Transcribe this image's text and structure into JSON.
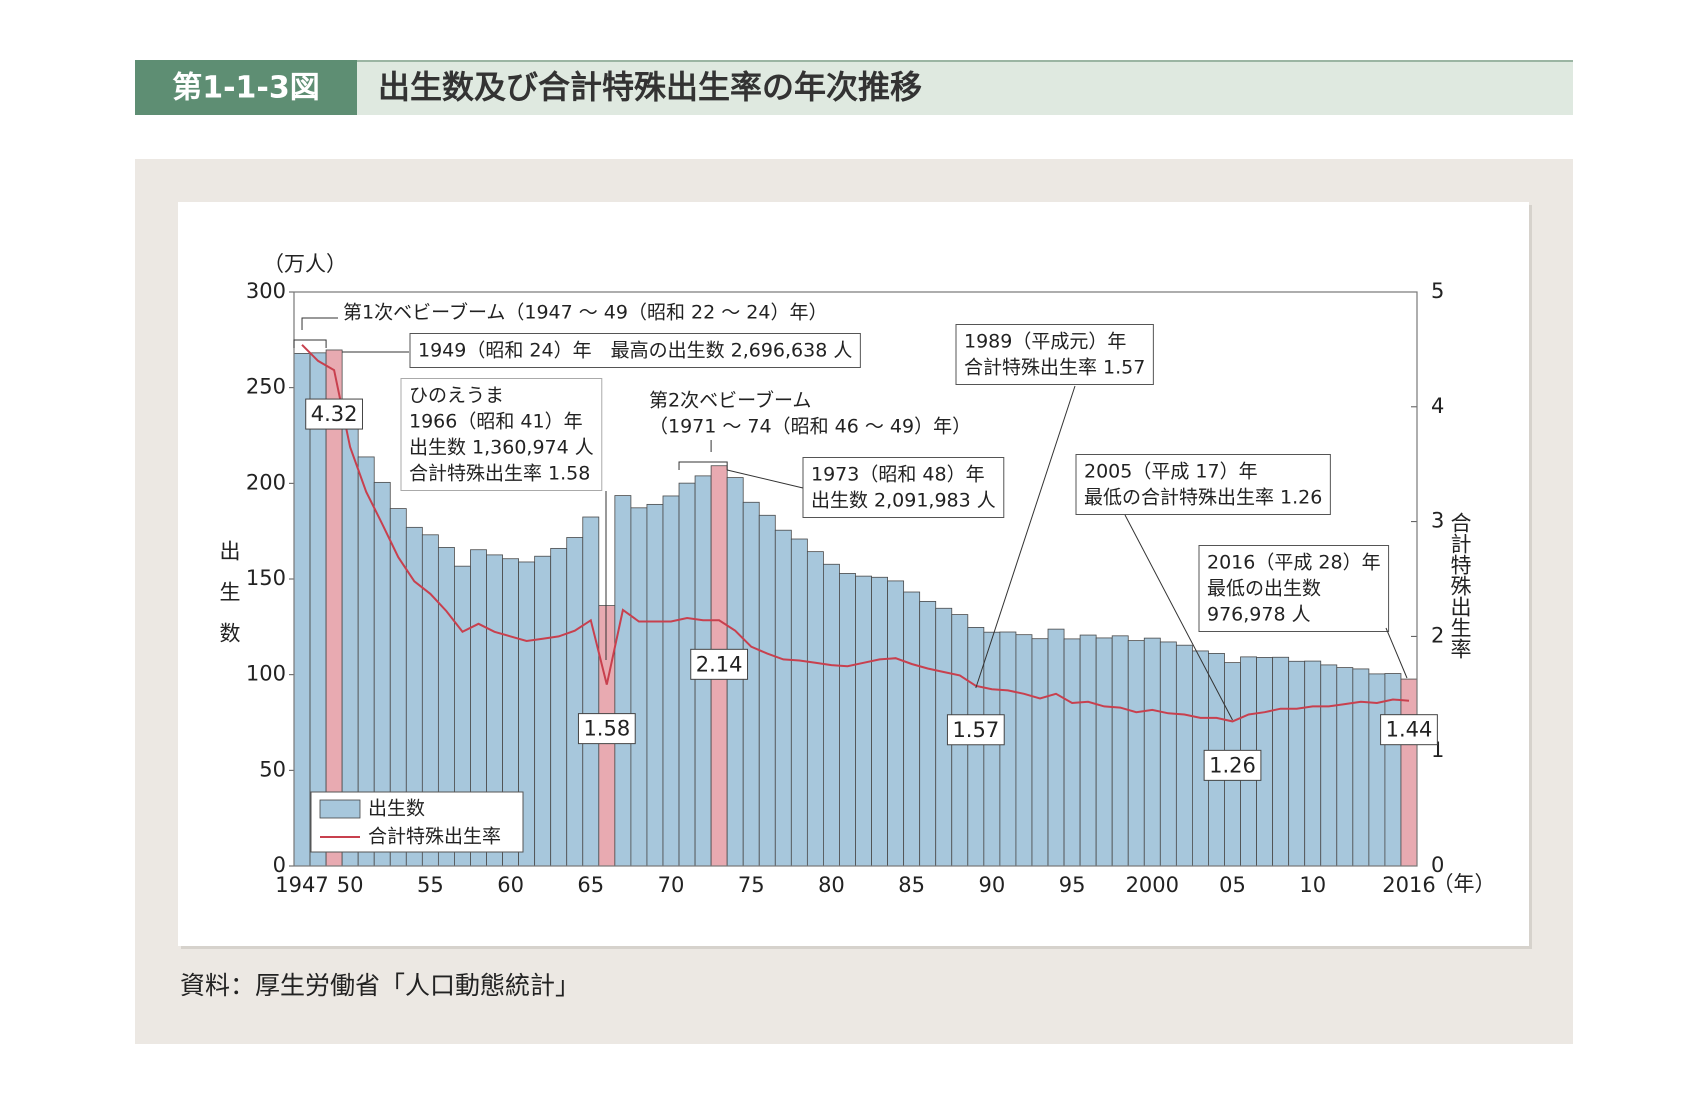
{
  "header": {
    "figure_number": "第1-1-3図",
    "title": "出生数及び合計特殊出生率の年次推移"
  },
  "source": "資料：厚生労働省「人口動態統計」",
  "chart_data": {
    "type": "bar_line",
    "y_unit": "（万人）",
    "y_label": "出生数",
    "y2_label": "合計特殊出生率",
    "x_unit": "（年）",
    "categories": [
      "1947",
      null,
      null,
      "50",
      null,
      null,
      null,
      null,
      "55",
      null,
      null,
      null,
      null,
      "60",
      null,
      null,
      null,
      null,
      "65",
      null,
      null,
      null,
      null,
      "70",
      null,
      null,
      null,
      null,
      "75",
      null,
      null,
      null,
      null,
      "80",
      null,
      null,
      null,
      null,
      "85",
      null,
      null,
      null,
      null,
      "90",
      null,
      null,
      null,
      null,
      "95",
      null,
      null,
      null,
      null,
      "2000",
      null,
      null,
      null,
      null,
      "05",
      null,
      null,
      null,
      null,
      "10",
      null,
      null,
      null,
      null,
      null,
      "2016"
    ],
    "series": [
      {
        "name": "出生数",
        "type": "bar",
        "color": "#a7c7dc",
        "highlight_color": "#e8aab1",
        "colors": [
          "#a7c7dc",
          "#a7c7dc",
          "#e8aab1",
          "#a7c7dc",
          "#a7c7dc",
          "#a7c7dc",
          "#a7c7dc",
          "#a7c7dc",
          "#a7c7dc",
          "#a7c7dc",
          "#a7c7dc",
          "#a7c7dc",
          "#a7c7dc",
          "#a7c7dc",
          "#a7c7dc",
          "#a7c7dc",
          "#a7c7dc",
          "#a7c7dc",
          "#a7c7dc",
          "#e8aab1",
          "#a7c7dc",
          "#a7c7dc",
          "#a7c7dc",
          "#a7c7dc",
          "#a7c7dc",
          "#a7c7dc",
          "#e8aab1",
          "#a7c7dc",
          "#a7c7dc",
          "#a7c7dc",
          "#a7c7dc",
          "#a7c7dc",
          "#a7c7dc",
          "#a7c7dc",
          "#a7c7dc",
          "#a7c7dc",
          "#a7c7dc",
          "#a7c7dc",
          "#a7c7dc",
          "#a7c7dc",
          "#a7c7dc",
          "#a7c7dc",
          "#a7c7dc",
          "#a7c7dc",
          "#a7c7dc",
          "#a7c7dc",
          "#a7c7dc",
          "#a7c7dc",
          "#a7c7dc",
          "#a7c7dc",
          "#a7c7dc",
          "#a7c7dc",
          "#a7c7dc",
          "#a7c7dc",
          "#a7c7dc",
          "#a7c7dc",
          "#a7c7dc",
          "#a7c7dc",
          "#a7c7dc",
          "#a7c7dc",
          "#a7c7dc",
          "#a7c7dc",
          "#a7c7dc",
          "#a7c7dc",
          "#a7c7dc",
          "#a7c7dc",
          "#a7c7dc",
          "#a7c7dc",
          "#a7c7dc",
          "#e8aab1"
        ],
        "values": [
          267.9,
          268.2,
          269.7,
          233.8,
          213.8,
          200.5,
          186.8,
          177.0,
          173.1,
          166.5,
          156.7,
          165.3,
          162.6,
          160.6,
          158.9,
          161.9,
          166.0,
          171.7,
          182.4,
          136.1,
          193.6,
          187.2,
          189.0,
          193.4,
          200.1,
          203.9,
          209.2,
          203.0,
          190.1,
          183.3,
          175.5,
          170.9,
          164.3,
          157.7,
          152.9,
          151.5,
          150.9,
          149.0,
          143.2,
          138.3,
          134.7,
          131.4,
          124.7,
          122.2,
          122.3,
          120.9,
          118.8,
          123.8,
          118.7,
          120.7,
          119.2,
          120.3,
          117.8,
          119.1,
          117.1,
          115.4,
          112.4,
          111.1,
          106.3,
          109.3,
          109.0,
          109.1,
          107.0,
          107.1,
          105.1,
          103.7,
          103.0,
          100.4,
          100.6,
          97.7
        ]
      },
      {
        "name": "合計特殊出生率",
        "type": "line",
        "axis": "y2",
        "color": "#c8404e",
        "values": [
          4.54,
          4.4,
          4.32,
          3.65,
          3.26,
          2.98,
          2.69,
          2.48,
          2.37,
          2.22,
          2.04,
          2.11,
          2.04,
          2.0,
          1.96,
          1.98,
          2.0,
          2.05,
          2.14,
          1.58,
          2.23,
          2.13,
          2.13,
          2.13,
          2.16,
          2.14,
          2.14,
          2.05,
          1.91,
          1.85,
          1.8,
          1.79,
          1.77,
          1.75,
          1.74,
          1.77,
          1.8,
          1.81,
          1.76,
          1.72,
          1.69,
          1.66,
          1.57,
          1.54,
          1.53,
          1.5,
          1.46,
          1.5,
          1.42,
          1.43,
          1.39,
          1.38,
          1.34,
          1.36,
          1.33,
          1.32,
          1.29,
          1.29,
          1.26,
          1.32,
          1.34,
          1.37,
          1.37,
          1.39,
          1.39,
          1.41,
          1.43,
          1.42,
          1.45,
          1.44
        ],
        "value_labels": [
          null,
          null,
          "4.32",
          null,
          null,
          null,
          null,
          null,
          null,
          null,
          null,
          null,
          null,
          null,
          null,
          null,
          null,
          null,
          null,
          "1.58",
          null,
          null,
          null,
          null,
          null,
          null,
          "2.14",
          null,
          null,
          null,
          null,
          null,
          null,
          null,
          null,
          null,
          null,
          null,
          null,
          null,
          null,
          null,
          "1.57",
          null,
          null,
          null,
          null,
          null,
          null,
          null,
          null,
          null,
          null,
          null,
          null,
          null,
          null,
          null,
          "1.26",
          null,
          null,
          null,
          null,
          null,
          null,
          null,
          null,
          null,
          null,
          "1.44"
        ]
      }
    ],
    "ylim": [
      0,
      300
    ],
    "yticks": [
      0,
      50,
      100,
      150,
      200,
      250,
      300
    ],
    "y2lim": [
      0,
      5
    ],
    "y2ticks": [
      0,
      1,
      2,
      3,
      4,
      5
    ],
    "legend": "lower left",
    "annotations": [
      {
        "lines": [
          "第1次ベビーブーム（1947 ～ 49（昭和 22 ～ 24）年）"
        ]
      },
      {
        "lines": [
          "1949（昭和 24）年　最高の出生数 2,696,638 人"
        ]
      },
      {
        "lines": [
          "ひのえうま",
          "1966（昭和 41）年",
          "出生数 1,360,974 人",
          "合計特殊出生率 1.58"
        ]
      },
      {
        "lines": [
          "第2次ベビーブーム",
          "（1971 ～ 74（昭和 46 ～ 49）年）"
        ]
      },
      {
        "lines": [
          "1973（昭和 48）年",
          "出生数 2,091,983 人"
        ]
      },
      {
        "lines": [
          "1989（平成元）年",
          "合計特殊出生率 1.57"
        ]
      },
      {
        "lines": [
          "2005（平成 17）年",
          "最低の合計特殊出生率 1.26"
        ]
      },
      {
        "lines": [
          "2016（平成 28）年",
          "最低の出生数",
          "976,978 人"
        ]
      }
    ]
  }
}
